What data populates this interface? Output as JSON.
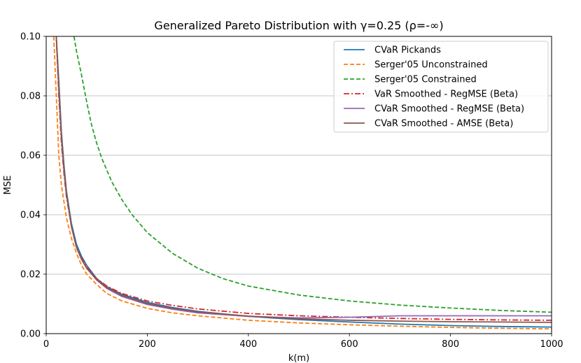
{
  "chart_data": {
    "type": "line",
    "title": "Generalized Pareto Distribution with γ=0.25 (ρ=-∞)",
    "xlabel": "k(m)",
    "ylabel": "MSE",
    "xlim": [
      0,
      1000
    ],
    "ylim": [
      0,
      0.1
    ],
    "x_ticks": [
      0,
      200,
      400,
      600,
      800,
      1000
    ],
    "x_tick_labels": [
      "0",
      "200",
      "400",
      "600",
      "800",
      "1000"
    ],
    "y_ticks": [
      0,
      0.02,
      0.04,
      0.06,
      0.08,
      0.1
    ],
    "y_tick_labels": [
      "0.00",
      "0.02",
      "0.04",
      "0.06",
      "0.08",
      "0.10"
    ],
    "grid": "horizontal",
    "legend_position": "top-right",
    "series": [
      {
        "name": "CVaR Pickands",
        "color": "#1f77b4",
        "style": "solid",
        "x": [
          20,
          25,
          30,
          35,
          40,
          50,
          60,
          70,
          80,
          100,
          120,
          150,
          200,
          250,
          300,
          400,
          500,
          600,
          700,
          800,
          900,
          1000
        ],
        "y": [
          0.1,
          0.085,
          0.068,
          0.057,
          0.048,
          0.037,
          0.03,
          0.026,
          0.023,
          0.0185,
          0.0158,
          0.0132,
          0.0105,
          0.0088,
          0.0075,
          0.0058,
          0.0047,
          0.0039,
          0.0032,
          0.0027,
          0.0024,
          0.0022
        ]
      },
      {
        "name": "Serger'05 Unconstrained",
        "color": "#ff7f0e",
        "style": "dashed",
        "x": [
          15,
          20,
          25,
          30,
          40,
          50,
          60,
          70,
          80,
          100,
          120,
          150,
          200,
          250,
          300,
          400,
          500,
          600,
          700,
          800,
          900,
          1000
        ],
        "y": [
          0.1,
          0.08,
          0.06,
          0.05,
          0.039,
          0.032,
          0.027,
          0.023,
          0.02,
          0.0165,
          0.0135,
          0.011,
          0.0085,
          0.007,
          0.006,
          0.0045,
          0.0036,
          0.003,
          0.0025,
          0.0021,
          0.0018,
          0.0016
        ]
      },
      {
        "name": "Serger'05 Constrained",
        "color": "#2ca02c",
        "style": "dashed",
        "x": [
          55,
          60,
          70,
          80,
          90,
          100,
          110,
          120,
          130,
          150,
          170,
          200,
          250,
          300,
          350,
          400,
          450,
          500,
          600,
          700,
          800,
          900,
          1000
        ],
        "y": [
          0.1,
          0.095,
          0.087,
          0.078,
          0.07,
          0.064,
          0.059,
          0.055,
          0.051,
          0.045,
          0.04,
          0.034,
          0.027,
          0.022,
          0.0185,
          0.016,
          0.0145,
          0.013,
          0.011,
          0.0096,
          0.0086,
          0.0078,
          0.0072
        ]
      },
      {
        "name": "VaR Smoothed - RegMSE (Beta)",
        "color": "#d62728",
        "style": "dashdot",
        "x": [
          20,
          25,
          30,
          35,
          40,
          50,
          60,
          70,
          80,
          100,
          120,
          150,
          200,
          250,
          300,
          400,
          500,
          600,
          700,
          800,
          900,
          1000
        ],
        "y": [
          0.1,
          0.08,
          0.064,
          0.054,
          0.046,
          0.036,
          0.029,
          0.0255,
          0.0225,
          0.0185,
          0.016,
          0.0135,
          0.011,
          0.0095,
          0.0083,
          0.0068,
          0.006,
          0.0055,
          0.0051,
          0.0048,
          0.0046,
          0.0045
        ]
      },
      {
        "name": "CVaR Smoothed - RegMSE (Beta)",
        "color": "#9467bd",
        "style": "solid",
        "x": [
          20,
          25,
          30,
          35,
          40,
          50,
          60,
          70,
          80,
          100,
          120,
          150,
          200,
          250,
          300,
          400,
          500,
          600,
          700,
          800,
          900,
          1000
        ],
        "y": [
          0.1,
          0.082,
          0.066,
          0.055,
          0.047,
          0.036,
          0.029,
          0.025,
          0.022,
          0.018,
          0.0152,
          0.0125,
          0.0098,
          0.0082,
          0.007,
          0.0058,
          0.0053,
          0.0055,
          0.006,
          0.006,
          0.006,
          0.006
        ]
      },
      {
        "name": "CVaR Smoothed - AMSE (Beta)",
        "color": "#8c564b",
        "style": "solid",
        "x": [
          20,
          25,
          30,
          35,
          40,
          50,
          60,
          70,
          80,
          100,
          120,
          150,
          200,
          250,
          300,
          400,
          500,
          600,
          700,
          800,
          900,
          1000
        ],
        "y": [
          0.1,
          0.083,
          0.067,
          0.056,
          0.047,
          0.036,
          0.029,
          0.025,
          0.022,
          0.0182,
          0.0155,
          0.0128,
          0.0101,
          0.0085,
          0.0073,
          0.0059,
          0.005,
          0.0045,
          0.0042,
          0.004,
          0.0039,
          0.0038
        ]
      }
    ]
  }
}
